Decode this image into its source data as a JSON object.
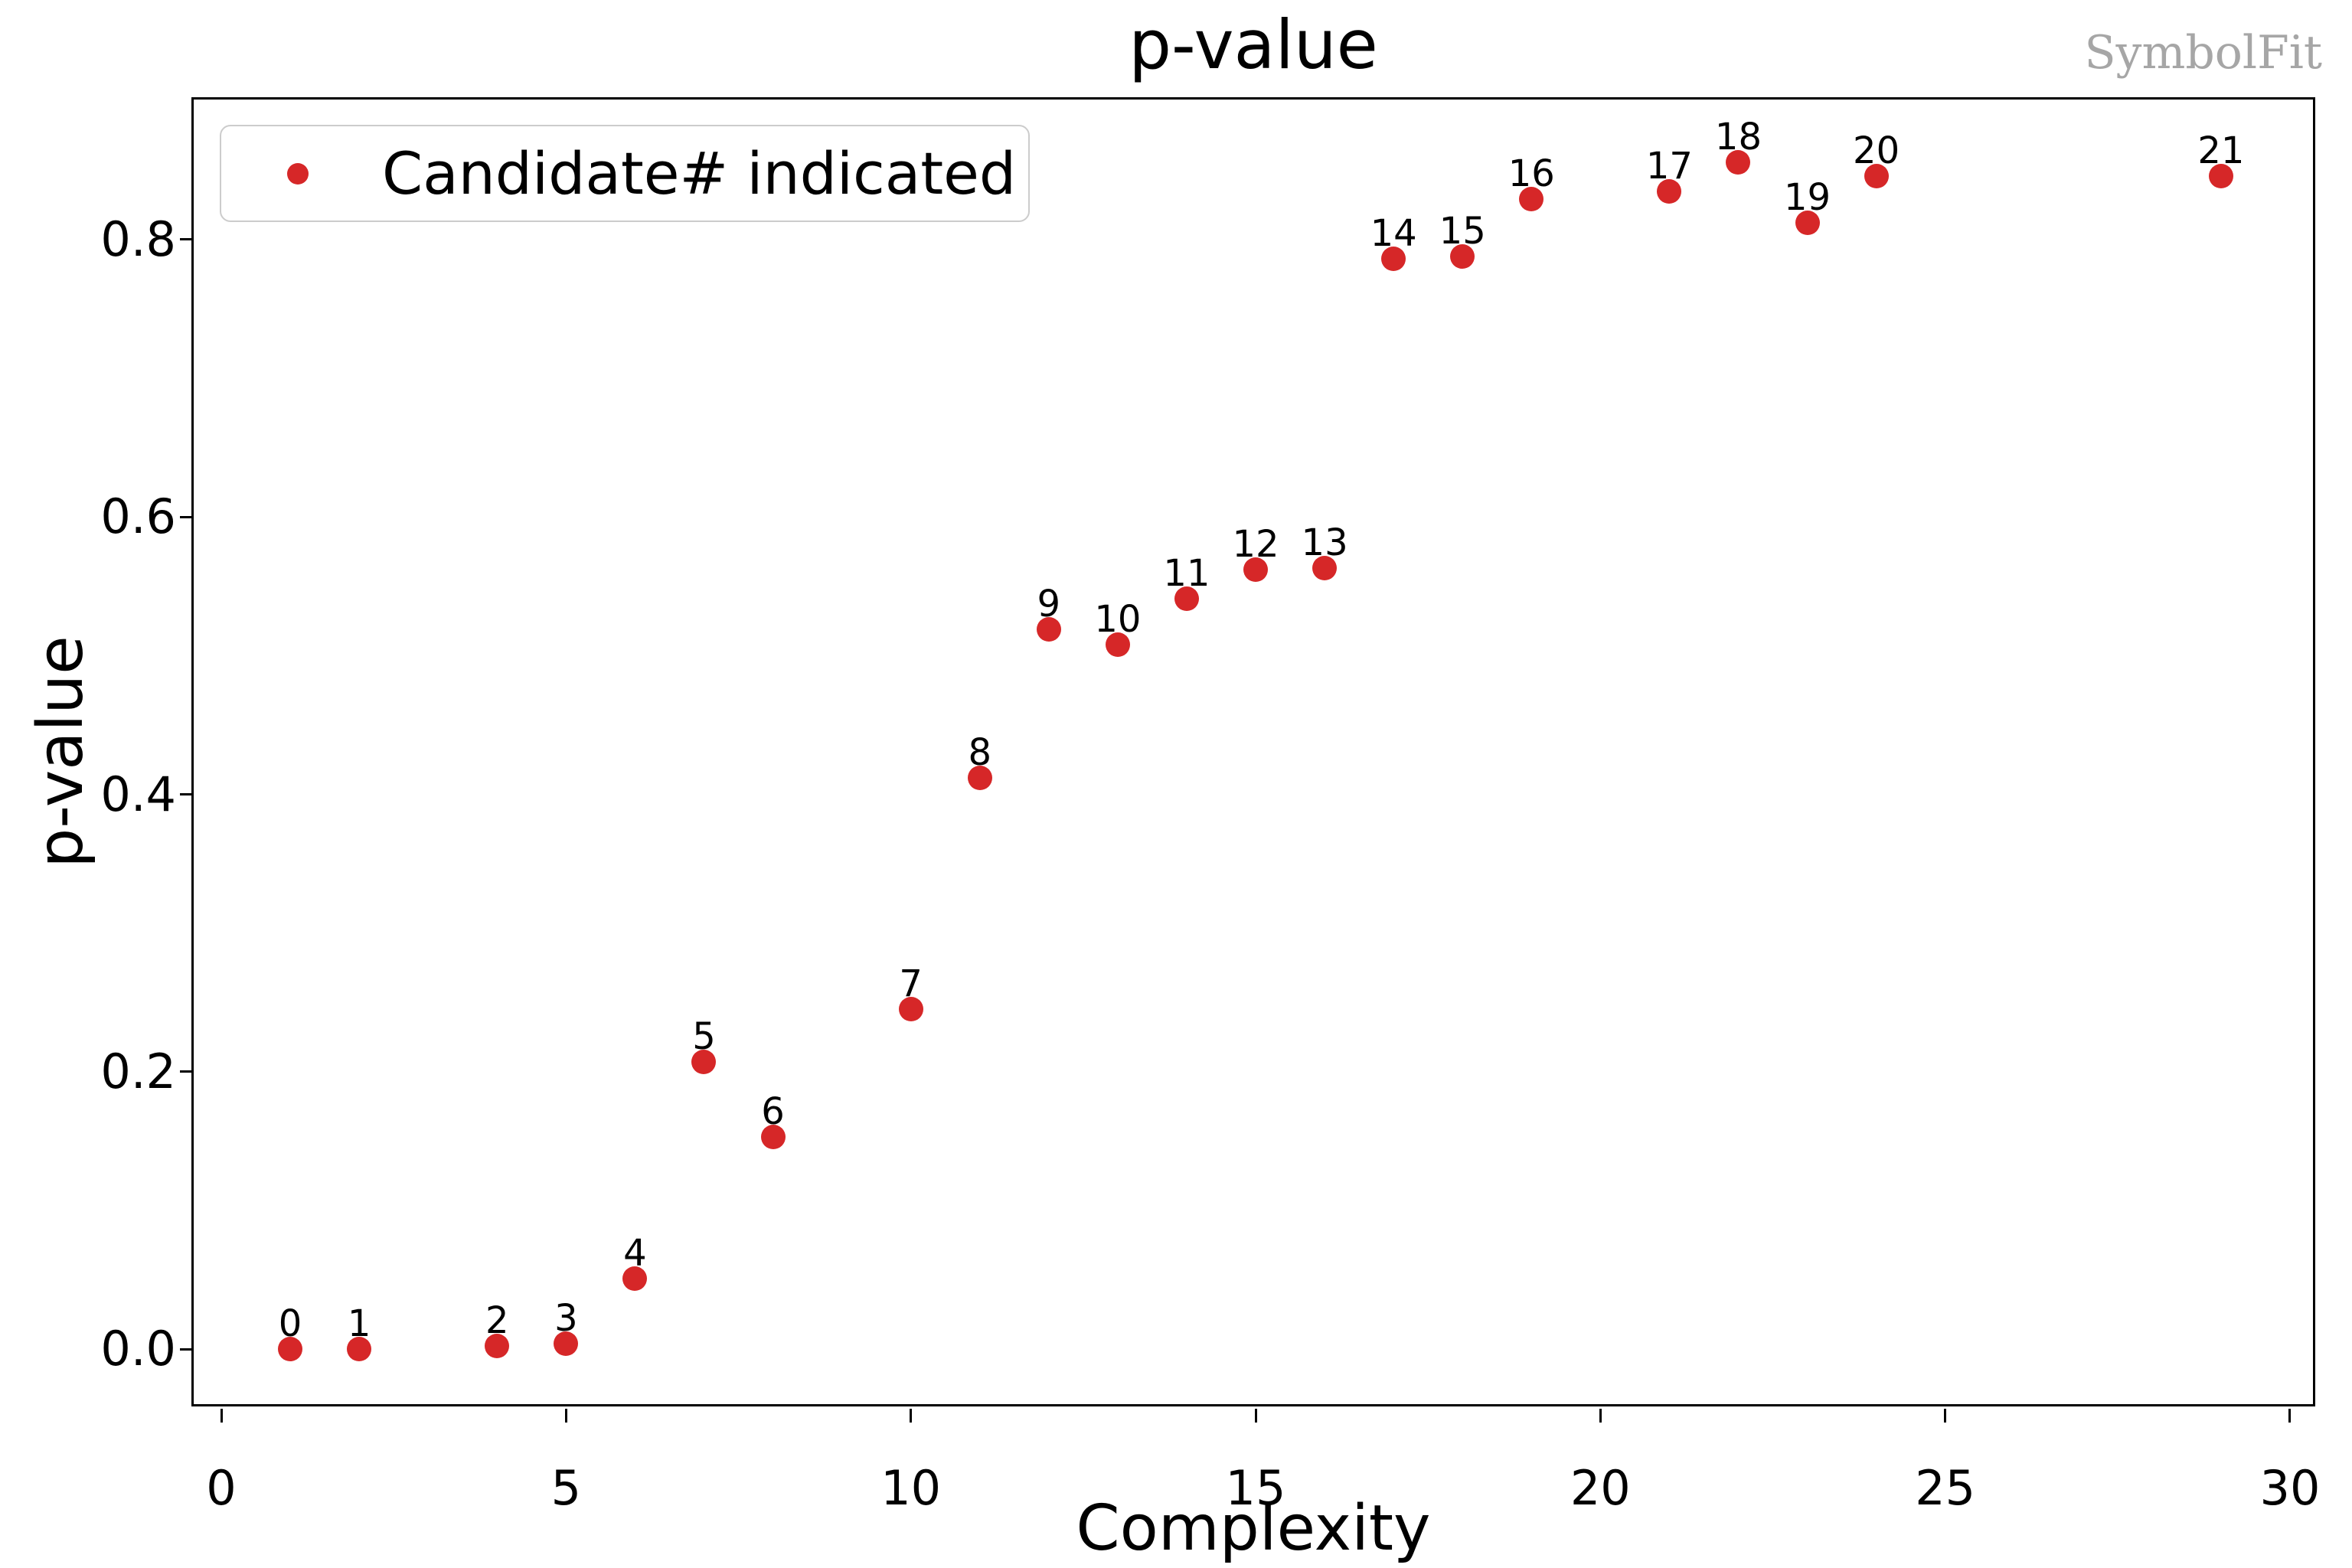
{
  "title": "p-value",
  "watermark": "SymbolFit",
  "xlabel": "Complexity",
  "ylabel": "p-value",
  "legend": {
    "label": "Candidate# indicated",
    "marker_color": "#d62728"
  },
  "colors": {
    "marker": "#d62728",
    "watermark": "#a6a6a6",
    "legend_border": "#cccccc",
    "axes": "#000000"
  },
  "chart_data": {
    "type": "scatter",
    "title": "p-value",
    "xlabel": "Complexity",
    "ylabel": "p-value",
    "legend_entries": [
      "Candidate# indicated"
    ],
    "legend_position": "upper left",
    "grid": false,
    "marker_color": "#d62728",
    "xlim": [
      -0.4,
      30.4
    ],
    "ylim": [
      -0.043,
      0.901
    ],
    "xticks": [
      "0",
      "5",
      "10",
      "15",
      "20",
      "25",
      "30"
    ],
    "yticks": [
      "0.0",
      "0.2",
      "0.4",
      "0.6",
      "0.8"
    ],
    "point_label_meaning": "candidate number shown above each marker",
    "points": [
      {
        "candidate": "0",
        "x": 1,
        "y": 0.0
      },
      {
        "candidate": "1",
        "x": 2,
        "y": 0.0
      },
      {
        "candidate": "2",
        "x": 4,
        "y": 0.002
      },
      {
        "candidate": "3",
        "x": 5,
        "y": 0.004
      },
      {
        "candidate": "4",
        "x": 6,
        "y": 0.051
      },
      {
        "candidate": "5",
        "x": 7,
        "y": 0.207
      },
      {
        "candidate": "6",
        "x": 8,
        "y": 0.153
      },
      {
        "candidate": "7",
        "x": 10,
        "y": 0.245
      },
      {
        "candidate": "8",
        "x": 11,
        "y": 0.412
      },
      {
        "candidate": "9",
        "x": 12,
        "y": 0.519
      },
      {
        "candidate": "10",
        "x": 13,
        "y": 0.508
      },
      {
        "candidate": "11",
        "x": 14,
        "y": 0.541
      },
      {
        "candidate": "12",
        "x": 15,
        "y": 0.562
      },
      {
        "candidate": "13",
        "x": 16,
        "y": 0.563
      },
      {
        "candidate": "14",
        "x": 17,
        "y": 0.786
      },
      {
        "candidate": "15",
        "x": 18,
        "y": 0.788
      },
      {
        "candidate": "16",
        "x": 19,
        "y": 0.829
      },
      {
        "candidate": "17",
        "x": 21,
        "y": 0.835
      },
      {
        "candidate": "18",
        "x": 22,
        "y": 0.856
      },
      {
        "candidate": "19",
        "x": 23,
        "y": 0.812
      },
      {
        "candidate": "20",
        "x": 24,
        "y": 0.846
      },
      {
        "candidate": "21",
        "x": 29,
        "y": 0.846
      }
    ]
  }
}
